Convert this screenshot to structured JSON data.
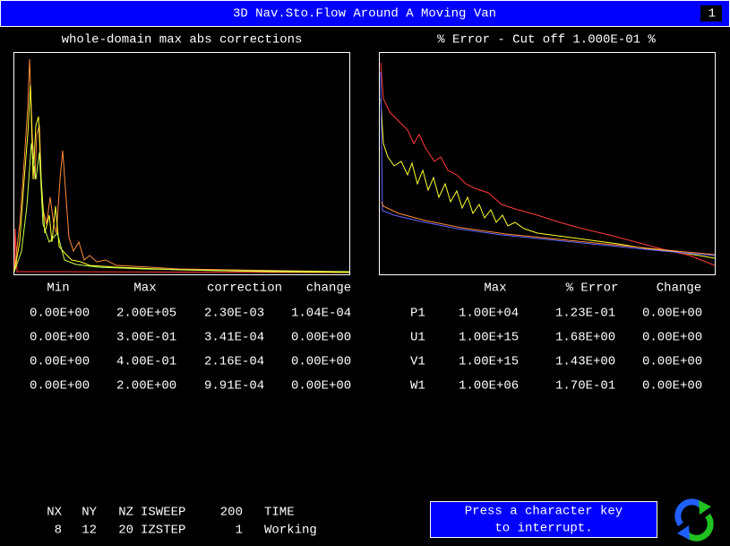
{
  "header": {
    "title": "3D Nav.Sto.Flow Around A Moving Van",
    "page": "1"
  },
  "left_panel": {
    "title": "whole-domain max abs corrections"
  },
  "right_panel": {
    "title": "% Error - Cut off 1.000E-01 %"
  },
  "left_table": {
    "headers": [
      "Min",
      "Max",
      "correction",
      "change"
    ],
    "rows": [
      {
        "color": "#ff3a3a",
        "cells": [
          "0.00E+00",
          "2.00E+05",
          "2.30E-03",
          "1.04E-04"
        ]
      },
      {
        "color": "#ff8c3a",
        "cells": [
          "0.00E+00",
          "3.00E-01",
          "3.41E-04",
          "0.00E+00"
        ]
      },
      {
        "color": "#e6e640",
        "cells": [
          "0.00E+00",
          "4.00E-01",
          "2.16E-04",
          "0.00E+00"
        ]
      },
      {
        "color": "#c8ff50",
        "cells": [
          "0.00E+00",
          "2.00E+00",
          "9.91E-04",
          "0.00E+00"
        ]
      }
    ]
  },
  "right_table": {
    "headers": [
      "Max",
      "% Error",
      "Change"
    ],
    "rows": [
      {
        "color": "#ff3a3a",
        "name": "P1",
        "cells": [
          "1.00E+04",
          "1.23E-01",
          "0.00E+00"
        ]
      },
      {
        "color": "#ff8c3a",
        "name": "U1",
        "cells": [
          "1.00E+15",
          "1.68E+00",
          "0.00E+00"
        ]
      },
      {
        "color": "#e6e640",
        "name": "V1",
        "cells": [
          "1.00E+15",
          "1.43E+00",
          "0.00E+00"
        ]
      },
      {
        "color": "#c8ff50",
        "name": "W1",
        "cells": [
          "1.00E+06",
          "1.70E-01",
          "0.00E+00"
        ]
      }
    ]
  },
  "status": {
    "rows": [
      [
        "NX",
        "NY",
        "NZ",
        "ISWEEP",
        "200",
        "TIME"
      ],
      [
        "8",
        "12",
        "20",
        "IZSTEP",
        "1",
        "Working"
      ]
    ]
  },
  "button": {
    "lines": [
      "Press a character key",
      "to interrupt."
    ]
  }
}
